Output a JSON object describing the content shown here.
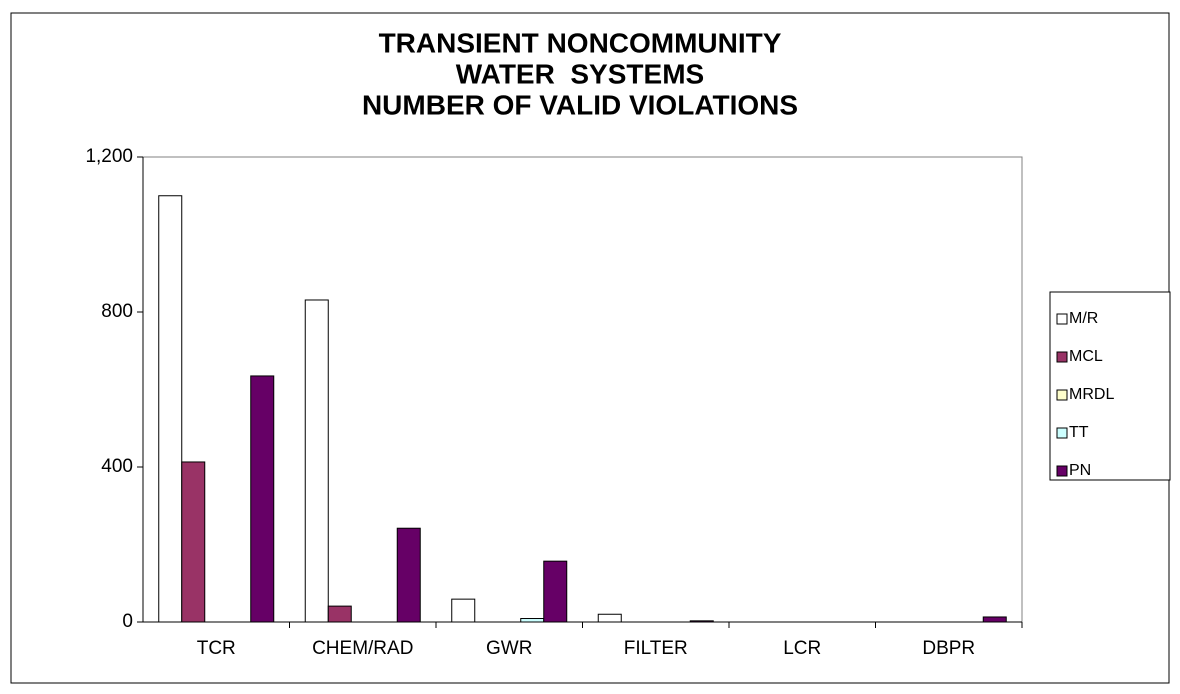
{
  "chart_data": {
    "type": "bar",
    "title": [
      "TRANSIENT NONCOMMUNITY",
      "WATER  SYSTEMS",
      "NUMBER OF VALID VIOLATIONS"
    ],
    "categories": [
      "TCR",
      "CHEM/RAD",
      "GWR",
      "FILTER",
      "LCR",
      "DBPR"
    ],
    "series": [
      {
        "name": "M/R",
        "color": "#ffffff",
        "values": [
          1100,
          831,
          59,
          20,
          0,
          0
        ]
      },
      {
        "name": "MCL",
        "color": "#993366",
        "values": [
          413,
          41,
          0,
          0,
          0,
          0
        ]
      },
      {
        "name": "MRDL",
        "color": "#ffffcc",
        "values": [
          0,
          0,
          0,
          0,
          0,
          0
        ]
      },
      {
        "name": "TT",
        "color": "#ccffff",
        "values": [
          0,
          0,
          9,
          0,
          0,
          0
        ]
      },
      {
        "name": "PN",
        "color": "#660066",
        "values": [
          635,
          242,
          157,
          3,
          0,
          13
        ]
      }
    ],
    "ylim": [
      0,
      1200
    ],
    "yticks": [
      0,
      400,
      800,
      {
        "value": 1200,
        "label": "1,200"
      }
    ],
    "grid": false,
    "legend": "right"
  }
}
